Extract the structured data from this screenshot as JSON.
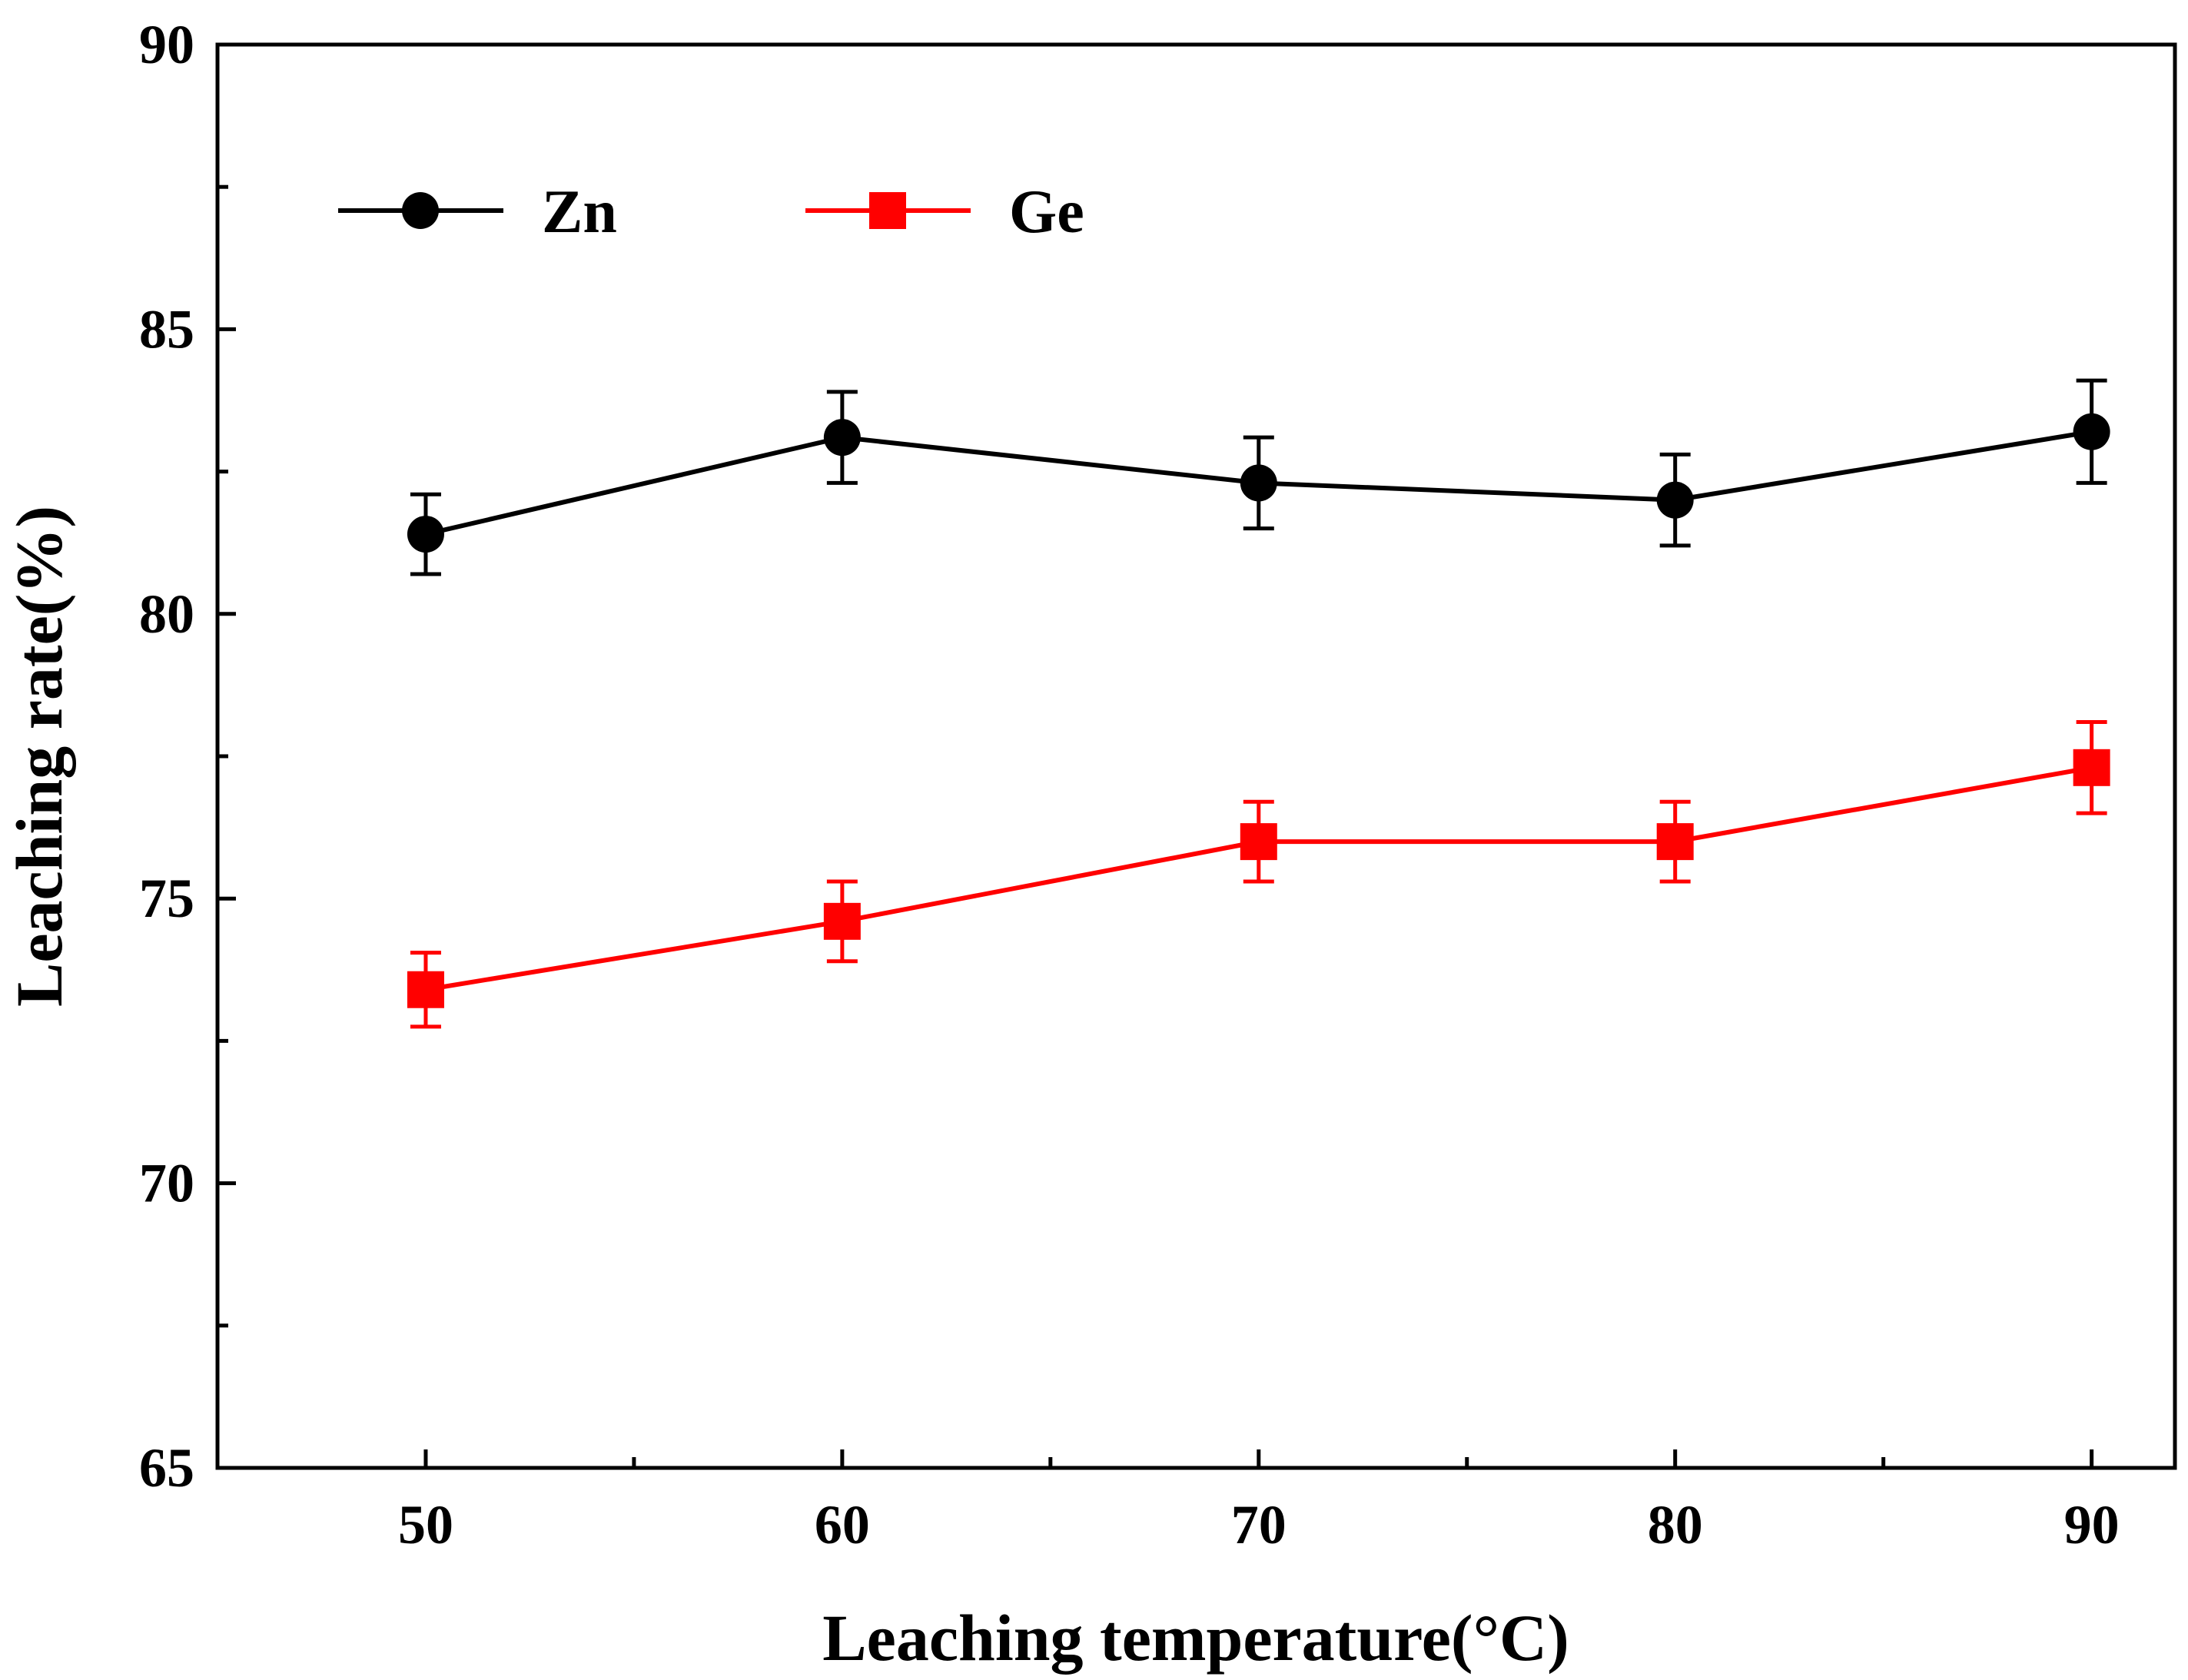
{
  "chart_data": {
    "type": "line",
    "title": "",
    "xlabel": "Leaching temperature(°C)",
    "ylabel": "Leaching rate(%)",
    "x": [
      50,
      60,
      70,
      80,
      90
    ],
    "xlim": [
      45,
      92
    ],
    "ylim": [
      65,
      90
    ],
    "x_ticks": [
      "50",
      "60",
      "70",
      "80",
      "90"
    ],
    "y_ticks": [
      "65",
      "70",
      "75",
      "80",
      "85",
      "90"
    ],
    "grid": false,
    "legend_position": "top-left",
    "series": [
      {
        "name": "Zn",
        "marker": "circle",
        "color": "#000000",
        "values": [
          81.4,
          83.1,
          82.3,
          82.0,
          83.2
        ],
        "error": [
          0.7,
          0.8,
          0.8,
          0.8,
          0.9
        ]
      },
      {
        "name": "Ge",
        "marker": "square",
        "color": "#ff0000",
        "values": [
          73.4,
          74.6,
          76.0,
          76.0,
          77.3
        ],
        "error": [
          0.65,
          0.7,
          0.7,
          0.7,
          0.8
        ]
      }
    ]
  }
}
